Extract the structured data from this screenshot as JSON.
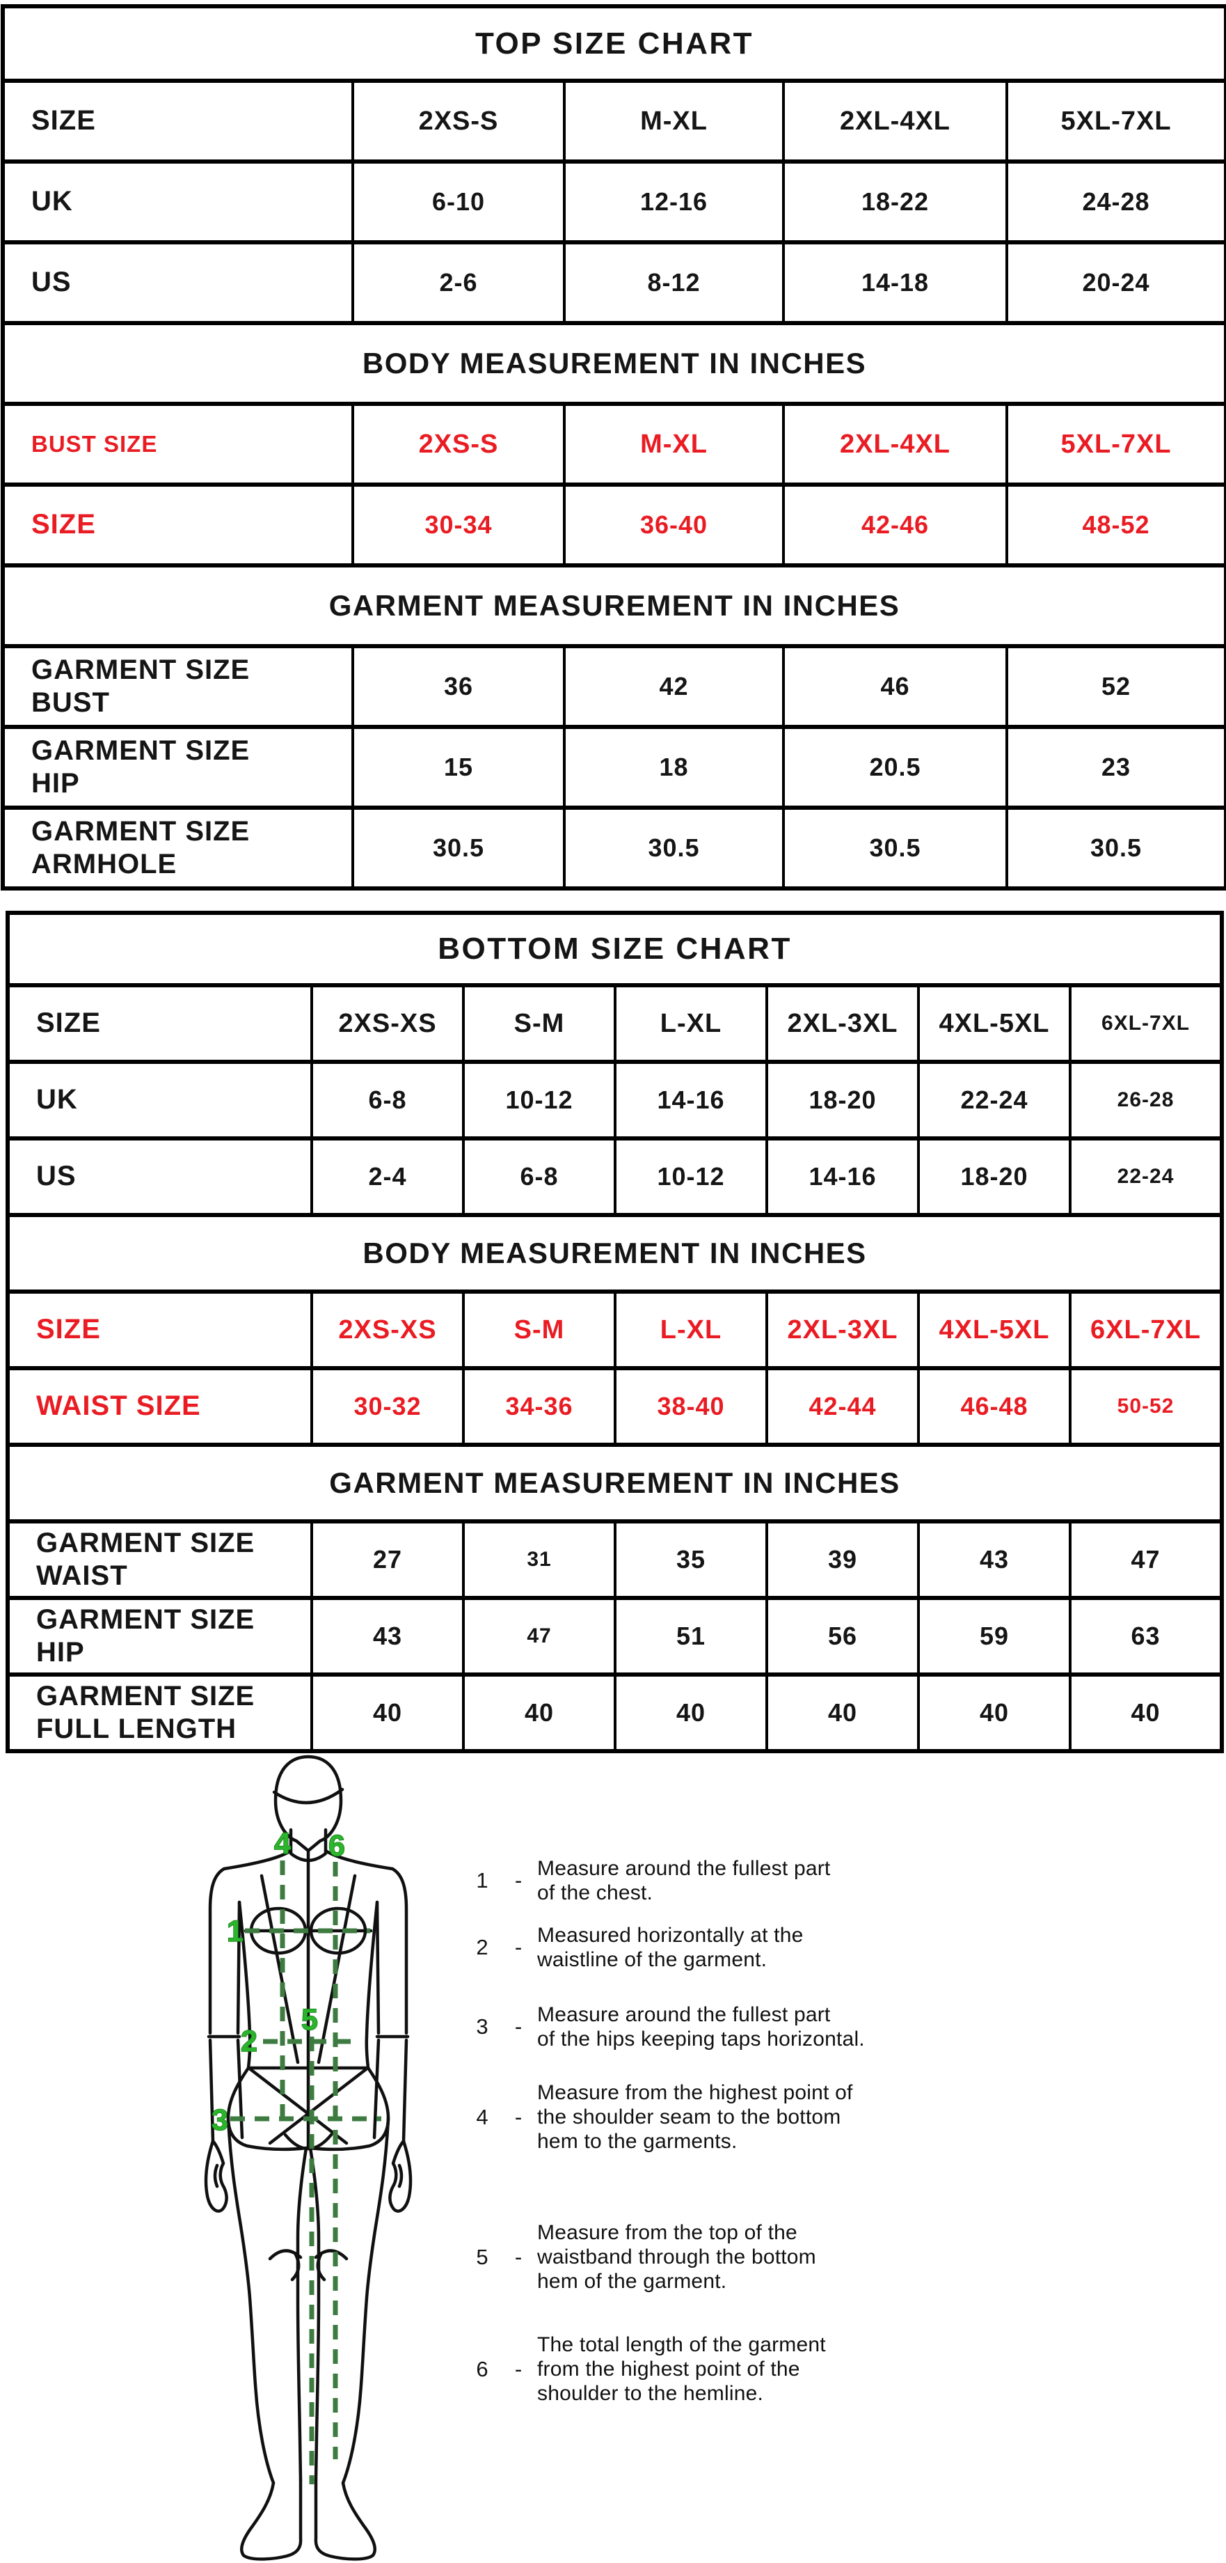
{
  "colors": {
    "red": "#ea1c23",
    "green_number": "#2cb52c",
    "green_dash": "#3e7b41",
    "border": "#000000",
    "text": "#151515"
  },
  "top_chart": {
    "sections": [
      {
        "type": "title",
        "text": "TOP SIZE CHART"
      },
      {
        "type": "rows",
        "rows": [
          {
            "label": "SIZE",
            "bold_values": true,
            "values": [
              "2XS-S",
              "M-XL",
              "2XL-4XL",
              "5XL-7XL"
            ]
          },
          {
            "label": "UK",
            "values": [
              "6-10",
              "12-16",
              "18-22",
              "24-28"
            ]
          },
          {
            "label": "US",
            "values": [
              "2-6",
              "8-12",
              "14-18",
              "20-24"
            ]
          }
        ]
      },
      {
        "type": "header",
        "text": "BODY MEASUREMENT IN INCHES"
      },
      {
        "type": "rows",
        "red": true,
        "rows": [
          {
            "label": "BUST SIZE",
            "small_label": true,
            "bold_values": true,
            "values": [
              "2XS-S",
              "M-XL",
              "2XL-4XL",
              "5XL-7XL"
            ]
          },
          {
            "label": "SIZE",
            "values": [
              "30-34",
              "36-40",
              "42-46",
              "48-52"
            ]
          }
        ]
      },
      {
        "type": "header",
        "text": "GARMENT MEASUREMENT IN INCHES"
      },
      {
        "type": "rows",
        "rows": [
          {
            "label": "GARMENT SIZE\nBUST",
            "values": [
              "36",
              "42",
              "46",
              "52"
            ]
          },
          {
            "label": "GARMENT SIZE\nHIP",
            "values": [
              "15",
              "18",
              "20.5",
              "23"
            ]
          },
          {
            "label": "GARMENT SIZE\nARMHOLE",
            "values": [
              "30.5",
              "30.5",
              "30.5",
              "30.5"
            ]
          }
        ]
      }
    ]
  },
  "bottom_chart": {
    "sections": [
      {
        "type": "title",
        "text": "BOTTOM SIZE CHART"
      },
      {
        "type": "rows",
        "rows": [
          {
            "label": "SIZE",
            "bold_values": true,
            "values": [
              "2XS-XS",
              "S-M",
              "L-XL",
              "2XL-3XL",
              "4XL-5XL",
              {
                "v": "6XL-7XL",
                "cls": "sm"
              }
            ]
          },
          {
            "label": "UK",
            "values": [
              "6-8",
              "10-12",
              "14-16",
              "18-20",
              "22-24",
              {
                "v": "26-28",
                "cls": "sm"
              }
            ]
          },
          {
            "label": "US",
            "values": [
              "2-4",
              "6-8",
              "10-12",
              "14-16",
              "18-20",
              {
                "v": "22-24",
                "cls": "sm"
              }
            ]
          }
        ]
      },
      {
        "type": "header",
        "text": "BODY MEASUREMENT IN INCHES"
      },
      {
        "type": "rows",
        "red": true,
        "rows": [
          {
            "label": "SIZE",
            "bold_values": true,
            "values": [
              "2XS-XS",
              "S-M",
              "L-XL",
              "2XL-3XL",
              "4XL-5XL",
              "6XL-7XL"
            ]
          },
          {
            "label": "WAIST SIZE",
            "values": [
              "30-32",
              "34-36",
              "38-40",
              "42-44",
              "46-48",
              {
                "v": "50-52",
                "cls": "sm"
              }
            ]
          }
        ]
      },
      {
        "type": "header",
        "text": "GARMENT MEASUREMENT IN INCHES"
      },
      {
        "type": "rows",
        "rows": [
          {
            "label": "GARMENT SIZE\nWAIST",
            "values": [
              "27",
              {
                "v": "31",
                "cls": "sm"
              },
              "35",
              "39",
              "43",
              "47"
            ]
          },
          {
            "label": "GARMENT SIZE\nHIP",
            "values": [
              "43",
              {
                "v": "47",
                "cls": "sm"
              },
              "51",
              "56",
              "59",
              "63"
            ]
          },
          {
            "label": "GARMENT SIZE\nFULL LENGTH",
            "values": [
              "40",
              "40",
              "40",
              "40",
              "40",
              "40"
            ]
          }
        ]
      }
    ]
  },
  "figure": {
    "numbers": [
      "1",
      "2",
      "3",
      "4",
      "5",
      "6"
    ]
  },
  "legend": {
    "items": [
      {
        "num": "1",
        "separator": "-",
        "text": "Measure around the fullest part\nof the chest."
      },
      {
        "num": "2",
        "separator": "-",
        "text": "Measured horizontally at the\nwaistline of the garment."
      },
      {
        "num": "3",
        "separator": "-",
        "text": "Measure around the fullest part\nof the hips keeping taps horizontal."
      },
      {
        "num": "4",
        "separator": "-",
        "text": "Measure from the highest point of\nthe shoulder seam to the bottom\nhem to the garments."
      },
      {
        "num": "5",
        "separator": "-",
        "text": "Measure from the top of the\nwaistband through the bottom\nhem of the garment."
      },
      {
        "num": "6",
        "separator": "-",
        "text": "The total length of the garment\nfrom the highest point of the\nshoulder to the hemline."
      }
    ]
  }
}
